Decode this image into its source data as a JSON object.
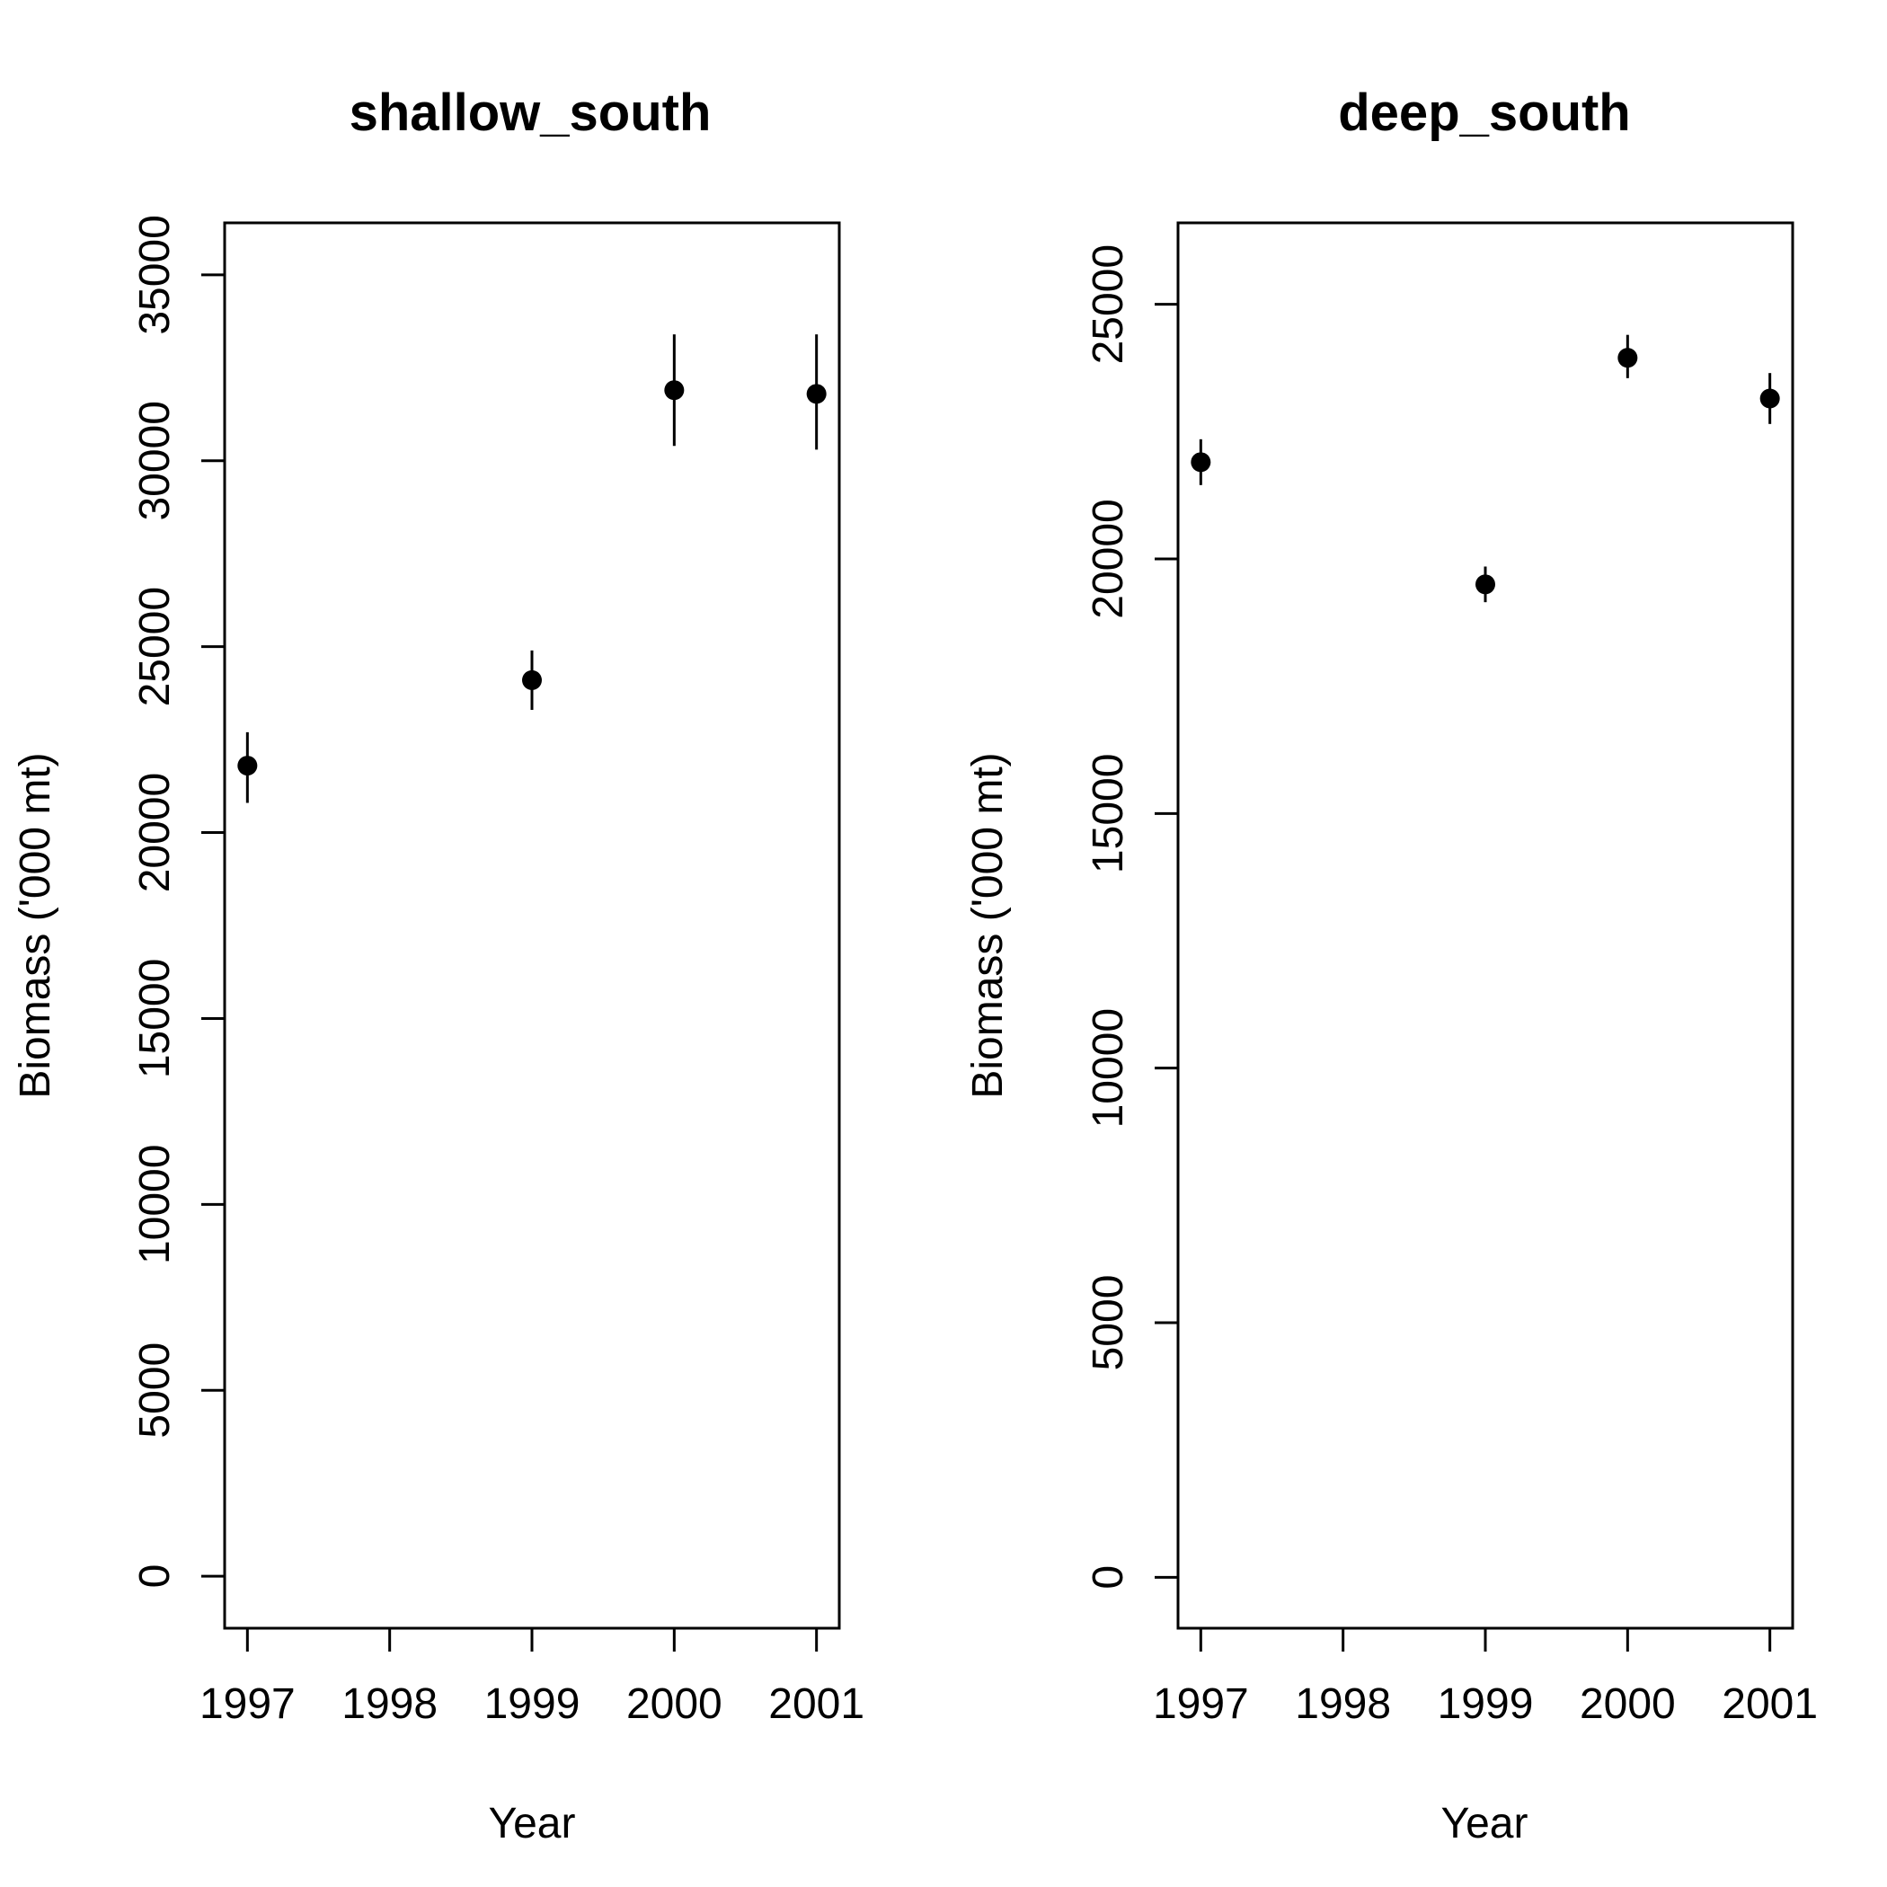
{
  "chart_data": [
    {
      "type": "scatter",
      "title": "shallow_south",
      "xlabel": "Year",
      "ylabel": "Biomass ('000 mt)",
      "x_ticks": [
        1997,
        1998,
        1999,
        2000,
        2001
      ],
      "y_ticks": [
        0,
        5000,
        10000,
        15000,
        20000,
        25000,
        30000,
        35000
      ],
      "xlim": [
        1996.84,
        2001.16
      ],
      "ylim": [
        -1400,
        36400
      ],
      "grid": false,
      "points": [
        {
          "x": 1997,
          "y": 21800,
          "low": 20800,
          "high": 22700
        },
        {
          "x": 1999,
          "y": 24100,
          "low": 23300,
          "high": 24900
        },
        {
          "x": 2000,
          "y": 31900,
          "low": 30400,
          "high": 33400
        },
        {
          "x": 2001,
          "y": 31800,
          "low": 30300,
          "high": 33400
        }
      ]
    },
    {
      "type": "scatter",
      "title": "deep_south",
      "xlabel": "Year",
      "ylabel": "Biomass ('000 mt)",
      "x_ticks": [
        1997,
        1998,
        1999,
        2000,
        2001
      ],
      "y_ticks": [
        0,
        5000,
        10000,
        15000,
        20000,
        25000
      ],
      "xlim": [
        1996.84,
        2001.16
      ],
      "ylim": [
        -1000,
        26600
      ],
      "grid": false,
      "points": [
        {
          "x": 1997,
          "y": 21900,
          "low": 21450,
          "high": 22350
        },
        {
          "x": 1999,
          "y": 19500,
          "low": 19150,
          "high": 19850
        },
        {
          "x": 2000,
          "y": 23950,
          "low": 23550,
          "high": 24400
        },
        {
          "x": 2001,
          "y": 23150,
          "low": 22650,
          "high": 23650
        }
      ]
    }
  ]
}
